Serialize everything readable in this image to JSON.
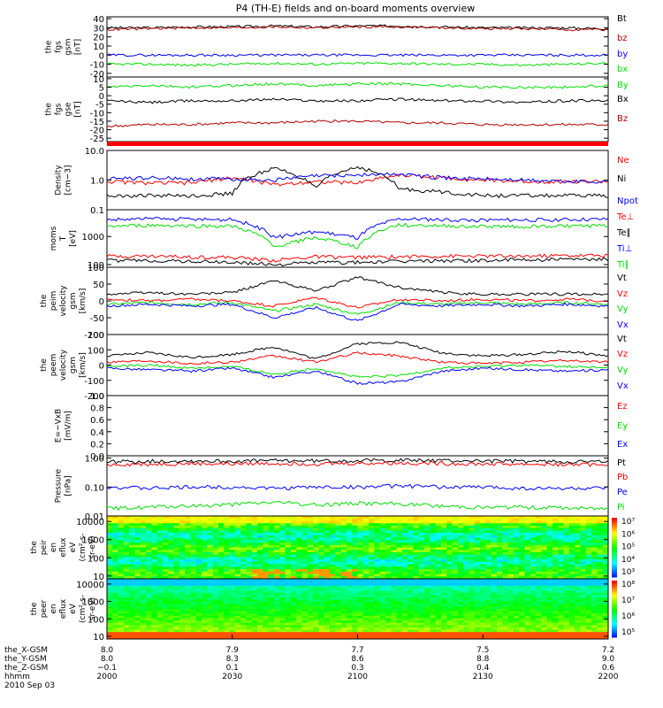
{
  "title": "P4 (TH-E) fields and on-board moments overview",
  "chart_data": [
    {
      "id": "fgs_gsm",
      "type": "line",
      "ylabel": [
        "the",
        "fgs",
        "gsm",
        "[nT]"
      ],
      "ylim": [
        -24,
        42
      ],
      "yticks": [
        40,
        30,
        20,
        10,
        0,
        -10,
        -20
      ],
      "ylog": false,
      "series": [
        {
          "name": "Bt",
          "color": "#000000",
          "values": [
            30,
            30,
            31,
            31,
            32,
            31,
            32,
            32,
            31,
            30,
            30,
            30,
            29
          ]
        },
        {
          "name": "bz",
          "color": "#b00000",
          "values": [
            28,
            29,
            30,
            30,
            31,
            30,
            31,
            31,
            30,
            29,
            29,
            28,
            28
          ]
        },
        {
          "name": "by",
          "color": "#0000ff",
          "values": [
            0,
            0,
            0,
            0,
            0,
            0,
            0,
            0,
            0,
            0,
            0,
            0,
            0
          ]
        },
        {
          "name": "bx",
          "color": "#00dd00",
          "values": [
            -10,
            -10,
            -11,
            -10,
            -9,
            -10,
            -9,
            -9,
            -10,
            -10,
            -11,
            -10,
            -9
          ]
        }
      ]
    },
    {
      "id": "fgs_gse",
      "type": "line",
      "ylabel": [
        "the",
        "fgs",
        "gse",
        "[nT]"
      ],
      "ylim": [
        -27,
        11
      ],
      "yticks": [
        10,
        5,
        0,
        -5,
        -10,
        -15,
        -20,
        -25
      ],
      "ylog": false,
      "series": [
        {
          "name": "By",
          "color": "#00dd00",
          "values": [
            5,
            6,
            5,
            6,
            7,
            6,
            7,
            7,
            6,
            5,
            5,
            5,
            6
          ]
        },
        {
          "name": "Bx",
          "color": "#000000",
          "values": [
            -3,
            -4,
            -3,
            -3,
            -2,
            -3,
            -3,
            -2,
            -3,
            -3,
            -4,
            -3,
            -3
          ]
        },
        {
          "name": "Bz",
          "color": "#b00000",
          "values": [
            -18,
            -17,
            -17,
            -16,
            -16,
            -15,
            -15,
            -16,
            -16,
            -17,
            -17,
            -17,
            -17
          ]
        }
      ]
    },
    {
      "id": "density",
      "type": "line",
      "ylabel": [
        "Density",
        "[cm−3]"
      ],
      "ylim": [
        0.1,
        10
      ],
      "yticks": [
        10.0,
        1.0,
        0.1
      ],
      "yticklabels": [
        "10.0",
        "1.0",
        "0.1"
      ],
      "ylog": true,
      "series": [
        {
          "name": "Ne",
          "color": "#ff0000",
          "values": [
            0.9,
            0.8,
            0.8,
            1.2,
            0.7,
            0.9,
            0.8,
            1.5,
            1.2,
            1.0,
            0.9,
            0.9,
            0.9
          ]
        },
        {
          "name": "Ni",
          "color": "#000000",
          "values": [
            0.3,
            0.3,
            0.3,
            0.35,
            2.5,
            0.5,
            2.8,
            0.5,
            0.4,
            0.3,
            0.3,
            0.3,
            0.3
          ]
        },
        {
          "name": "Npot",
          "color": "#0000ff",
          "values": [
            1.1,
            1.2,
            1.1,
            1.1,
            1.0,
            1.4,
            1.5,
            1.6,
            1.2,
            1.1,
            1.0,
            0.9,
            0.9
          ]
        }
      ]
    },
    {
      "id": "moms_temp",
      "type": "line",
      "ylabel": [
        "moms",
        "T",
        "[eV]"
      ],
      "ylim": [
        80,
        9000
      ],
      "yticks": [
        1000,
        100
      ],
      "yticklabels": [
        "1000",
        "100"
      ],
      "ylog": true,
      "series": [
        {
          "name": "Te⊥",
          "color": "#ff0000",
          "values": [
            200,
            200,
            190,
            180,
            140,
            190,
            180,
            190,
            200,
            200,
            200,
            210,
            210
          ]
        },
        {
          "name": "Te∥",
          "color": "#000000",
          "values": [
            140,
            140,
            130,
            120,
            100,
            120,
            120,
            130,
            140,
            140,
            150,
            150,
            150
          ]
        },
        {
          "name": "Ti⊥",
          "color": "#0000ff",
          "values": [
            4000,
            4300,
            4100,
            4000,
            900,
            1500,
            900,
            4200,
            4000,
            3800,
            3900,
            4000,
            4100
          ]
        },
        {
          "name": "Ti∥",
          "color": "#00dd00",
          "values": [
            2300,
            2500,
            2400,
            2300,
            400,
            900,
            400,
            2600,
            2400,
            2300,
            2300,
            2400,
            2400
          ]
        }
      ]
    },
    {
      "id": "peim_velocity",
      "type": "line",
      "ylabel": [
        "the",
        "peim",
        "velocity",
        "gsm",
        "[km/s]"
      ],
      "ylim": [
        -100,
        100
      ],
      "yticks": [
        100,
        50,
        0,
        -50,
        -100
      ],
      "ylog": false,
      "series": [
        {
          "name": "Vt",
          "color": "#000000",
          "values": [
            20,
            25,
            20,
            25,
            60,
            30,
            70,
            40,
            25,
            20,
            20,
            20,
            20
          ]
        },
        {
          "name": "Vz",
          "color": "#ff0000",
          "values": [
            5,
            0,
            5,
            0,
            -15,
            10,
            -20,
            5,
            0,
            5,
            0,
            5,
            0
          ]
        },
        {
          "name": "Vy",
          "color": "#00dd00",
          "values": [
            -10,
            -5,
            -10,
            -5,
            -30,
            -10,
            -40,
            -5,
            -10,
            -5,
            -10,
            -5,
            -10
          ]
        },
        {
          "name": "Vx",
          "color": "#0000ff",
          "values": [
            -15,
            -10,
            -15,
            -10,
            -50,
            -20,
            -60,
            -10,
            -15,
            -10,
            -15,
            -10,
            -15
          ]
        }
      ]
    },
    {
      "id": "peem_velocity",
      "type": "line",
      "ylabel": [
        "the",
        "peem",
        "velocity",
        "gsm",
        "[km/s]"
      ],
      "ylim": [
        -200,
        200
      ],
      "yticks": [
        200,
        100,
        0,
        -100,
        -200
      ],
      "ylog": false,
      "series": [
        {
          "name": "Vt",
          "color": "#000000",
          "values": [
            60,
            80,
            50,
            70,
            120,
            40,
            140,
            150,
            80,
            60,
            70,
            90,
            60
          ]
        },
        {
          "name": "Vz",
          "color": "#ff0000",
          "values": [
            20,
            30,
            10,
            20,
            60,
            20,
            80,
            60,
            20,
            10,
            20,
            30,
            20
          ]
        },
        {
          "name": "Vy",
          "color": "#00dd00",
          "values": [
            -10,
            0,
            -20,
            -10,
            -60,
            -20,
            -80,
            -70,
            -20,
            -10,
            0,
            -10,
            -20
          ]
        },
        {
          "name": "Vx",
          "color": "#0000ff",
          "values": [
            -20,
            -30,
            -40,
            -20,
            -80,
            -40,
            -120,
            -110,
            -40,
            -20,
            -30,
            -40,
            -30
          ]
        }
      ]
    },
    {
      "id": "efield",
      "type": "line",
      "ylabel": [
        "E=−VxB",
        "[mV/m]"
      ],
      "ylim": [
        0.0,
        1.0
      ],
      "yticks": [
        1.0,
        0.8,
        0.6,
        0.4,
        0.2,
        0.0
      ],
      "yticklabels": [
        "1.0",
        "0.8",
        "0.6",
        "0.4",
        "0.2",
        "0.0"
      ],
      "ylog": false,
      "series": [
        {
          "name": "Ez",
          "color": "#ff0000",
          "values": []
        },
        {
          "name": "Ey",
          "color": "#00dd00",
          "values": []
        },
        {
          "name": "Ex",
          "color": "#0000ff",
          "values": []
        }
      ]
    },
    {
      "id": "pressure",
      "type": "line",
      "ylabel": [
        "Pressure",
        "[nPa]"
      ],
      "ylim": [
        0.01,
        1.2
      ],
      "yticks": [
        1.0,
        0.1,
        0.01
      ],
      "yticklabels": [
        "1.00",
        "0.10",
        "0.01"
      ],
      "ylog": true,
      "series": [
        {
          "name": "Pt",
          "color": "#000000",
          "values": [
            0.75,
            0.78,
            0.8,
            0.78,
            0.82,
            0.8,
            0.82,
            0.85,
            0.82,
            0.8,
            0.78,
            0.76,
            0.75
          ]
        },
        {
          "name": "Pb",
          "color": "#ff0000",
          "values": [
            0.6,
            0.62,
            0.65,
            0.63,
            0.66,
            0.64,
            0.66,
            0.68,
            0.65,
            0.63,
            0.62,
            0.6,
            0.6
          ]
        },
        {
          "name": "Pe",
          "color": "#0000ff",
          "values": [
            0.1,
            0.09,
            0.1,
            0.1,
            0.09,
            0.1,
            0.1,
            0.11,
            0.1,
            0.1,
            0.09,
            0.09,
            0.09
          ]
        },
        {
          "name": "Pi",
          "color": "#00dd00",
          "values": [
            0.018,
            0.02,
            0.022,
            0.025,
            0.03,
            0.024,
            0.028,
            0.026,
            0.022,
            0.02,
            0.02,
            0.019,
            0.018
          ]
        }
      ]
    },
    {
      "id": "peir_spec",
      "type": "heatmap",
      "ylabel": [
        "the",
        "peir",
        "en",
        "eflux",
        "eV",
        "(cm²-s-",
        "sr-eV)"
      ],
      "ylim": [
        7,
        20000
      ],
      "yticks": [
        10000,
        1000,
        100,
        10
      ],
      "yticklabels": [
        "10000",
        "1000",
        "100",
        "10"
      ],
      "ylog": true,
      "colorbar": {
        "labels": [
          "10⁷",
          "10⁶",
          "10⁵",
          "10⁴",
          "10³"
        ]
      }
    },
    {
      "id": "peer_spec",
      "type": "heatmap",
      "ylabel": [
        "the",
        "peer",
        "en",
        "eflux",
        "eV",
        "(cm²-s-",
        "sr-eV)"
      ],
      "ylim": [
        7,
        20000
      ],
      "yticks": [
        10000,
        1000,
        100,
        10
      ],
      "yticklabels": [
        "10000",
        "1000",
        "100",
        "10"
      ],
      "ylog": true,
      "colorbar": {
        "labels": [
          "10⁸",
          "10⁷",
          "10⁶",
          "10⁵"
        ]
      }
    }
  ],
  "x_axis": {
    "rows": [
      {
        "label": "the_X-GSM",
        "values": [
          "8.0",
          "7.9",
          "7.7",
          "7.5",
          "7.2"
        ]
      },
      {
        "label": "the_Y-GSM",
        "values": [
          "8.0",
          "8.3",
          "8.6",
          "8.8",
          "9.0"
        ]
      },
      {
        "label": "the_Z-GSM",
        "values": [
          "−0.1",
          "0.1",
          "0.3",
          "0.4",
          "0.6"
        ]
      },
      {
        "label": "hhmm",
        "values": [
          "2000",
          "2030",
          "2100",
          "2130",
          "2200"
        ]
      }
    ],
    "date": "2010 Sep 03"
  }
}
